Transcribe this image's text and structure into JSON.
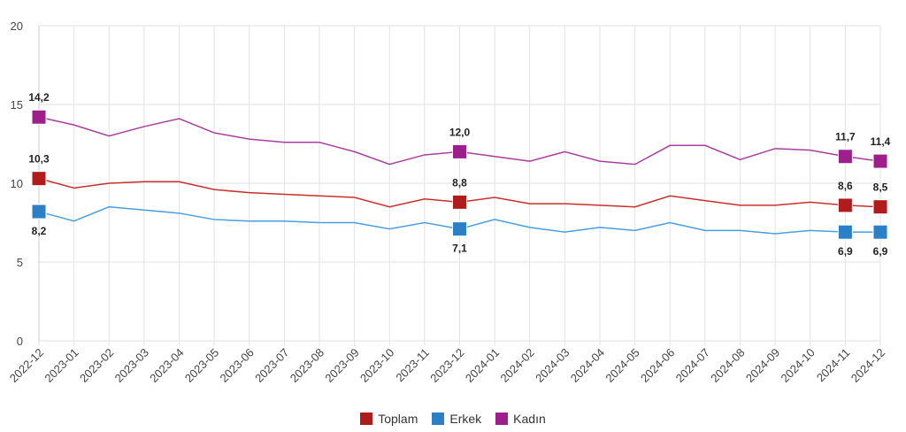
{
  "chart_data": {
    "type": "line",
    "title": "",
    "xlabel": "",
    "ylabel": "",
    "ylim": [
      0,
      20
    ],
    "yticks": [
      "0",
      "5",
      "10",
      "15",
      "20"
    ],
    "ytick_values": [
      0,
      5,
      10,
      15,
      20
    ],
    "grid": true,
    "legend_position": "bottom",
    "categories": [
      "2022-12",
      "2023-01",
      "2023-02",
      "2023-03",
      "2023-04",
      "2023-05",
      "2023-06",
      "2023-07",
      "2023-08",
      "2023-09",
      "2023-10",
      "2023-11",
      "2023-12",
      "2024-01",
      "2024-02",
      "2024-03",
      "2024-04",
      "2024-05",
      "2024-06",
      "2024-07",
      "2024-08",
      "2024-09",
      "2024-10",
      "2024-11",
      "2024-12"
    ],
    "marked_indices": [
      0,
      12,
      23,
      24
    ],
    "series": [
      {
        "name": "Toplam",
        "color": "#b01c1c",
        "line_color": "#c8302f",
        "label_pos": "above",
        "values": [
          10.3,
          9.7,
          10.0,
          10.1,
          10.1,
          9.6,
          9.4,
          9.3,
          9.2,
          9.1,
          8.5,
          9.0,
          8.8,
          9.1,
          8.7,
          8.7,
          8.6,
          8.5,
          9.2,
          8.9,
          8.6,
          8.6,
          8.8,
          8.6,
          8.5
        ],
        "labels": {
          "0": "10,3",
          "12": "8,8",
          "23": "8,6",
          "24": "8,5"
        }
      },
      {
        "name": "Erkek",
        "color": "#2a7fc7",
        "line_color": "#4a9ee0",
        "label_pos": "below",
        "values": [
          8.2,
          7.6,
          8.5,
          8.3,
          8.1,
          7.7,
          7.6,
          7.6,
          7.5,
          7.5,
          7.1,
          7.5,
          7.1,
          7.7,
          7.2,
          6.9,
          7.2,
          7.0,
          7.5,
          7.0,
          7.0,
          6.8,
          7.0,
          6.9,
          6.9
        ],
        "labels": {
          "0": "8,2",
          "12": "7,1",
          "23": "6,9",
          "24": "6,9"
        }
      },
      {
        "name": "Kadın",
        "color": "#9c1f8c",
        "line_color": "#a83fa0",
        "label_pos": "above",
        "values": [
          14.2,
          13.7,
          13.0,
          13.6,
          14.1,
          13.2,
          12.8,
          12.6,
          12.6,
          12.0,
          11.2,
          11.8,
          12.0,
          11.7,
          11.4,
          12.0,
          11.4,
          11.2,
          12.4,
          12.4,
          11.5,
          12.2,
          12.1,
          11.7,
          11.4
        ],
        "labels": {
          "0": "14,2",
          "12": "12,0",
          "23": "11,7",
          "24": "11,4"
        }
      }
    ]
  }
}
